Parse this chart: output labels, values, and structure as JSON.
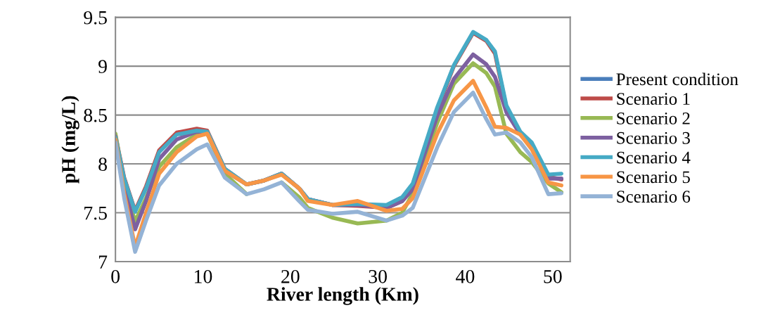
{
  "chart_data": {
    "type": "line",
    "xlabel": "River length (Km)",
    "ylabel": "pH (mg/L)",
    "x": [
      0,
      1,
      2.25,
      3.5,
      5,
      7,
      9.3,
      10.5,
      12.5,
      15,
      17,
      19,
      21,
      22,
      24.8,
      27.7,
      31,
      32.8,
      34,
      36.8,
      38.7,
      40.9,
      42.4,
      43.4,
      44.7,
      46.3,
      47.6,
      49.5,
      51
    ],
    "xlim": [
      0,
      52
    ],
    "xticks": [
      0,
      10,
      20,
      30,
      40,
      50
    ],
    "ylim": [
      7,
      9.5
    ],
    "yticks": [
      7,
      7.5,
      8,
      8.5,
      9,
      9.5
    ],
    "grid": "y",
    "legend": "right",
    "marker": "none",
    "line_style": "solid",
    "series": [
      {
        "name": "Present condition",
        "color": "#4a7ebb",
        "values": [
          null,
          null,
          null,
          null,
          null,
          null,
          null,
          null,
          null,
          null,
          null,
          null,
          null,
          null,
          null,
          null,
          null,
          null,
          null,
          null,
          null,
          null,
          null,
          null,
          null,
          null,
          null,
          null,
          null
        ]
      },
      {
        "name": "Scenario 1",
        "color": "#be4b48",
        "values": [
          8.29,
          7.86,
          7.52,
          7.77,
          8.14,
          8.32,
          8.36,
          8.34,
          7.95,
          7.79,
          7.83,
          7.9,
          7.75,
          7.64,
          7.58,
          7.57,
          7.55,
          7.62,
          7.76,
          8.56,
          9.0,
          9.34,
          9.26,
          9.13,
          8.58,
          8.32,
          8.2,
          7.87,
          7.84
        ]
      },
      {
        "name": "Scenario 2",
        "color": "#98b954",
        "values": [
          8.31,
          7.8,
          7.41,
          7.65,
          7.97,
          8.17,
          8.3,
          8.31,
          7.9,
          7.69,
          null,
          7.81,
          7.66,
          7.55,
          7.45,
          7.39,
          7.42,
          7.5,
          7.7,
          8.42,
          8.82,
          9.03,
          8.93,
          8.79,
          8.31,
          8.12,
          8.02,
          7.8,
          7.71
        ]
      },
      {
        "name": "Scenario 3",
        "color": "#7d60a0",
        "values": [
          8.28,
          7.78,
          7.33,
          7.62,
          8.05,
          8.25,
          8.33,
          8.32,
          7.93,
          7.79,
          7.83,
          7.9,
          7.75,
          7.64,
          7.58,
          7.58,
          7.55,
          7.62,
          7.74,
          8.49,
          8.87,
          9.12,
          9.02,
          8.89,
          8.53,
          8.3,
          8.18,
          7.85,
          7.85
        ]
      },
      {
        "name": "Scenario 4",
        "color": "#46aac5",
        "values": [
          8.27,
          7.85,
          7.51,
          7.75,
          8.12,
          8.3,
          8.34,
          8.33,
          7.95,
          7.79,
          7.83,
          7.9,
          7.75,
          7.64,
          7.58,
          7.59,
          7.58,
          7.66,
          7.8,
          8.58,
          9.01,
          9.35,
          9.27,
          9.15,
          8.6,
          8.33,
          8.22,
          7.89,
          7.9
        ]
      },
      {
        "name": "Scenario 5",
        "color": "#f79646",
        "values": [
          8.25,
          7.7,
          7.15,
          7.5,
          7.9,
          8.12,
          8.28,
          8.31,
          7.93,
          7.79,
          7.83,
          7.89,
          7.75,
          7.62,
          7.58,
          7.62,
          7.52,
          7.54,
          7.65,
          8.31,
          8.65,
          8.85,
          8.58,
          8.38,
          8.37,
          8.3,
          8.15,
          7.81,
          7.78
        ]
      },
      {
        "name": "Scenario 6",
        "color": "#94b3d6",
        "values": [
          8.22,
          7.65,
          7.1,
          7.42,
          7.78,
          8.0,
          8.15,
          8.2,
          7.86,
          7.69,
          7.74,
          7.81,
          7.62,
          7.53,
          7.49,
          7.51,
          7.42,
          7.47,
          7.55,
          8.17,
          8.53,
          8.73,
          8.46,
          8.3,
          8.32,
          8.22,
          8.07,
          7.69,
          7.7
        ]
      }
    ]
  }
}
